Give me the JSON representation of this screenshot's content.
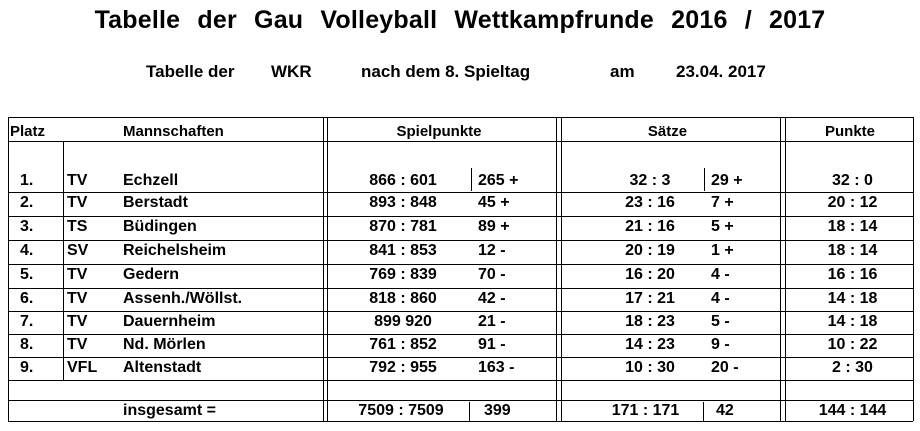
{
  "header": {
    "title": "Tabelle der Gau Volleyball Wettkampfrunde 2016 / 2017",
    "sub_part1": "Tabelle der",
    "sub_part2": "WKR",
    "sub_part3": "nach dem 8. Spieltag",
    "sub_part4": "am",
    "sub_part5": "23.04. 2017"
  },
  "columns": {
    "platz": "Platz",
    "mannschaften": "Mannschaften",
    "spielpunkte": "Spielpunkte",
    "saetze": "Sätze",
    "punkte": "Punkte"
  },
  "rows": [
    {
      "platz": "1.",
      "verein": "TV",
      "name": "Echzell",
      "spielpunkte": "866 : 601",
      "sp_diff": "265 +",
      "saetze": "32 : 3",
      "s_diff": "29 +",
      "punkte": "32 : 0"
    },
    {
      "platz": "2.",
      "verein": "TV",
      "name": "Berstadt",
      "spielpunkte": "893 : 848",
      "sp_diff": "45 +",
      "saetze": "23 : 16",
      "s_diff": "7 +",
      "punkte": "20 : 12"
    },
    {
      "platz": "3.",
      "verein": "TS",
      "name": "Büdingen",
      "spielpunkte": "870 : 781",
      "sp_diff": "89 +",
      "saetze": "21 : 16",
      "s_diff": "5 +",
      "punkte": "18 : 14"
    },
    {
      "platz": "4.",
      "verein": "SV",
      "name": "Reichelsheim",
      "spielpunkte": "841 : 853",
      "sp_diff": "12 -",
      "saetze": "20 : 19",
      "s_diff": "1 +",
      "punkte": "18 : 14"
    },
    {
      "platz": "5.",
      "verein": "TV",
      "name": "Gedern",
      "spielpunkte": "769 : 839",
      "sp_diff": "70 -",
      "saetze": "16 : 20",
      "s_diff": "4 -",
      "punkte": "16 : 16"
    },
    {
      "platz": "6.",
      "verein": "TV",
      "name": "Assenh./Wöllst.",
      "spielpunkte": "818 : 860",
      "sp_diff": "42 -",
      "saetze": "17 : 21",
      "s_diff": "4 -",
      "punkte": "14 : 18"
    },
    {
      "platz": "7.",
      "verein": "TV",
      "name": "Dauernheim",
      "spielpunkte": "899 920",
      "sp_diff": "21 -",
      "saetze": "18 : 23",
      "s_diff": "5 -",
      "punkte": "14 : 18"
    },
    {
      "platz": "8.",
      "verein": "TV",
      "name": "Nd. Mörlen",
      "spielpunkte": "761 : 852",
      "sp_diff": "91 -",
      "saetze": "14 : 23",
      "s_diff": "9 -",
      "punkte": "10 : 22"
    },
    {
      "platz": "9.",
      "verein": "VFL",
      "name": "Altenstadt",
      "spielpunkte": "792 : 955",
      "sp_diff": "163 -",
      "saetze": "10 : 30",
      "s_diff": "20 -",
      "punkte": "2 : 30"
    }
  ],
  "total": {
    "label": "insgesamt =",
    "spielpunkte": "7509 : 7509",
    "sp_diff": "399",
    "saetze": "171 : 171",
    "s_diff": "42",
    "punkte": "144 : 144"
  }
}
